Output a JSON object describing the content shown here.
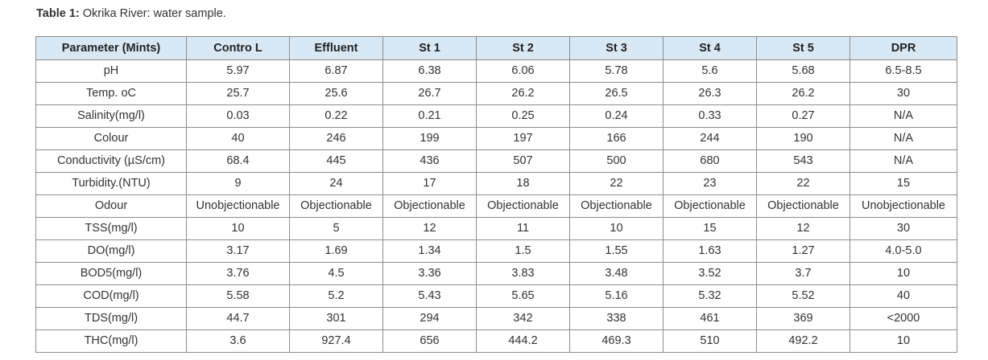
{
  "caption": {
    "label": "Table 1:",
    "text": "Okrika River: water sample."
  },
  "table": {
    "headers": [
      "Parameter (Mints)",
      "Contro L",
      "Effluent",
      "St 1",
      "St 2",
      "St 3",
      "St 4",
      "St 5",
      "DPR"
    ],
    "rows": [
      [
        "pH",
        "5.97",
        "6.87",
        "6.38",
        "6.06",
        "5.78",
        "5.6",
        "5.68",
        "6.5-8.5"
      ],
      [
        "Temp. oC",
        "25.7",
        "25.6",
        "26.7",
        "26.2",
        "26.5",
        "26.3",
        "26.2",
        "30"
      ],
      [
        "Salinity(mg/l)",
        "0.03",
        "0.22",
        "0.21",
        "0.25",
        "0.24",
        "0.33",
        "0.27",
        "N/A"
      ],
      [
        "Colour",
        "40",
        "246",
        "199",
        "197",
        "166",
        "244",
        "190",
        "N/A"
      ],
      [
        "Conductivity (µS/cm)",
        "68.4",
        "445",
        "436",
        "507",
        "500",
        "680",
        "543",
        "N/A"
      ],
      [
        "Turbidity.(NTU)",
        "9",
        "24",
        "17",
        "18",
        "22",
        "23",
        "22",
        "15"
      ],
      [
        "Odour",
        "Unobjectionable",
        "Objectionable",
        "Objectionable",
        "Objectionable",
        "Objectionable",
        "Objectionable",
        "Objectionable",
        "Unobjectionable"
      ],
      [
        "TSS(mg/l)",
        "10",
        "5",
        "12",
        "11",
        "10",
        "15",
        "12",
        "30"
      ],
      [
        "DO(mg/l)",
        "3.17",
        "1.69",
        "1.34",
        "1.5",
        "1.55",
        "1.63",
        "1.27",
        "4.0-5.0"
      ],
      [
        "BOD5(mg/l)",
        "3.76",
        "4.5",
        "3.36",
        "3.83",
        "3.48",
        "3.52",
        "3.7",
        "10"
      ],
      [
        "COD(mg/l)",
        "5.58",
        "5.2",
        "5.43",
        "5.65",
        "5.16",
        "5.32",
        "5.52",
        "40"
      ],
      [
        "TDS(mg/l)",
        "44.7",
        "301",
        "294",
        "342",
        "338",
        "461",
        "369",
        "<2000"
      ],
      [
        "THC(mg/l)",
        "3.6",
        "927.4",
        "656",
        "444.2",
        "469.3",
        "510",
        "492.2",
        "10"
      ]
    ]
  },
  "colors": {
    "header_bg": "#d9e8f5",
    "border": "#8c8c8c",
    "text": "#333333"
  }
}
